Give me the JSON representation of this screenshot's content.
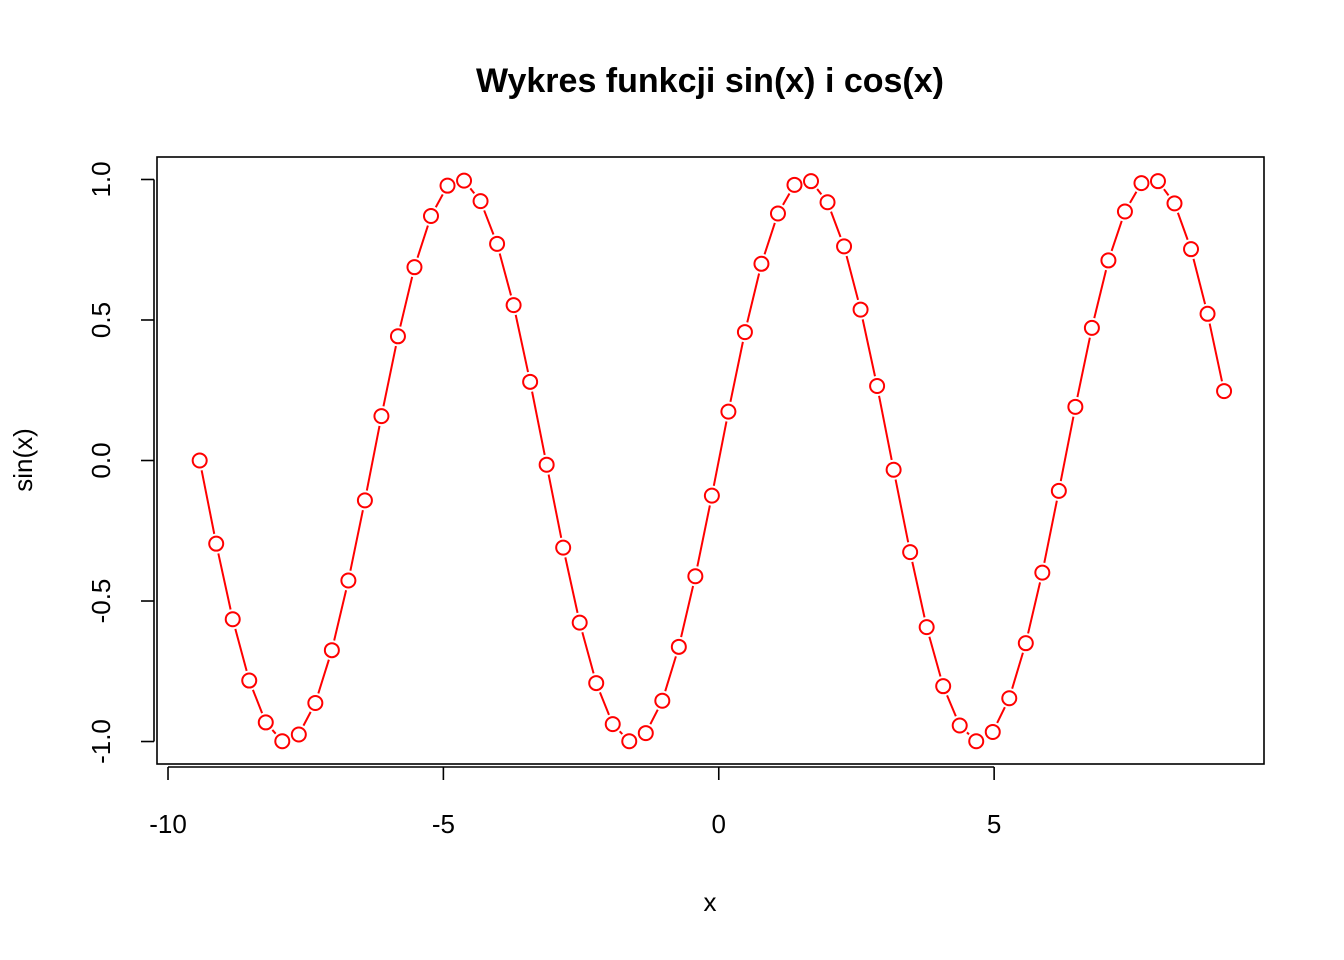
{
  "chart_data": {
    "type": "line",
    "title": "Wykres funkcji sin(x) i cos(x)",
    "xlabel": "x",
    "ylabel": "sin(x)",
    "xlim": [
      -10.2,
      9.9
    ],
    "ylim": [
      -1.08,
      1.08
    ],
    "x_ticks": [
      -10,
      -5,
      0,
      5
    ],
    "x_tick_labels": [
      "-10",
      "-5",
      "0",
      "5"
    ],
    "y_ticks": [
      -1.0,
      -0.5,
      0.0,
      0.5,
      1.0
    ],
    "y_tick_labels": [
      "-1.0",
      "-0.5",
      "0.0",
      "0.5",
      "1.0"
    ],
    "grid": false,
    "plot_type": "b",
    "series": [
      {
        "color": "#ff0000",
        "marker": "open-circle",
        "x": [
          -9.425,
          -9.125,
          -8.825,
          -8.525,
          -8.225,
          -7.925,
          -7.625,
          -7.325,
          -7.025,
          -6.725,
          -6.425,
          -6.125,
          -5.825,
          -5.525,
          -5.225,
          -4.925,
          -4.625,
          -4.325,
          -4.025,
          -3.725,
          -3.425,
          -3.125,
          -2.825,
          -2.525,
          -2.225,
          -1.925,
          -1.625,
          -1.325,
          -1.025,
          -0.725,
          -0.425,
          -0.125,
          0.175,
          0.475,
          0.775,
          1.075,
          1.375,
          1.675,
          1.975,
          2.275,
          2.575,
          2.875,
          3.175,
          3.475,
          3.775,
          4.075,
          4.375,
          4.675,
          4.975,
          5.275,
          5.575,
          5.875,
          6.175,
          6.475,
          6.775,
          7.075,
          7.375,
          7.675,
          7.975,
          8.275,
          8.575,
          8.875,
          9.175
        ],
        "values": [
          0.0,
          -0.296,
          -0.565,
          -0.783,
          -0.932,
          -0.999,
          -0.975,
          -0.863,
          -0.675,
          -0.427,
          -0.142,
          0.158,
          0.442,
          0.688,
          0.87,
          0.978,
          0.996,
          0.923,
          0.771,
          0.553,
          0.28,
          -0.015,
          -0.31,
          -0.577,
          -0.792,
          -0.938,
          -0.999,
          -0.97,
          -0.855,
          -0.663,
          -0.412,
          -0.125,
          0.174,
          0.457,
          0.7,
          0.879,
          0.981,
          0.994,
          0.919,
          0.762,
          0.537,
          0.265,
          -0.033,
          -0.326,
          -0.593,
          -0.803,
          -0.943,
          -0.999,
          -0.966,
          -0.846,
          -0.65,
          -0.399,
          -0.108,
          0.191,
          0.472,
          0.712,
          0.886,
          0.987,
          0.994,
          0.915,
          0.752,
          0.522,
          0.247
        ]
      }
    ]
  }
}
